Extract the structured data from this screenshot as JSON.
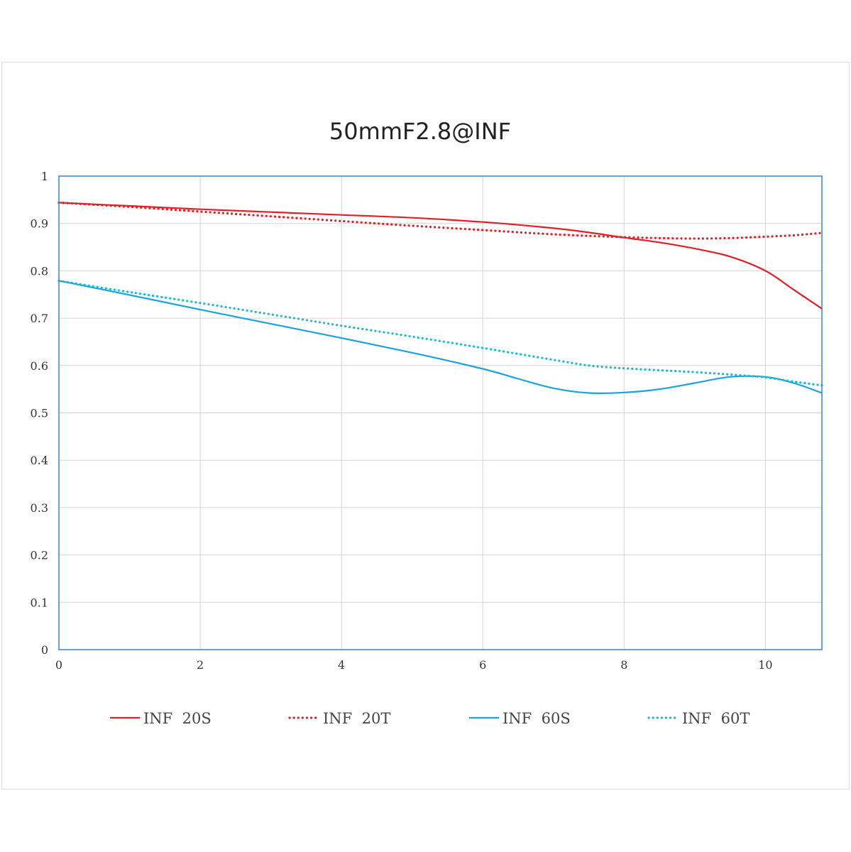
{
  "chart_data": {
    "type": "line",
    "title": "50mmF2.8@INF",
    "xlabel": "",
    "ylabel": "",
    "xlim": [
      0,
      10.8
    ],
    "ylim": [
      0,
      1
    ],
    "x_ticks": [
      "0",
      "2",
      "4",
      "6",
      "8",
      "10"
    ],
    "y_ticks": [
      "0",
      "0.1",
      "0.2",
      "0.3",
      "0.4",
      "0.5",
      "0.6",
      "0.7",
      "0.8",
      "0.9",
      "1"
    ],
    "grid": true,
    "legend_position": "bottom",
    "series": [
      {
        "name": "INF 20S",
        "color": "#e41e26",
        "style": "solid",
        "x": [
          0,
          1,
          2,
          3,
          4,
          5,
          6,
          7,
          7.5,
          8,
          8.5,
          9,
          9.5,
          10,
          10.4,
          10.8
        ],
        "y": [
          0.944,
          0.937,
          0.93,
          0.924,
          0.918,
          0.912,
          0.903,
          0.89,
          0.881,
          0.87,
          0.86,
          0.847,
          0.83,
          0.8,
          0.76,
          0.72
        ]
      },
      {
        "name": "INF 20T",
        "color": "#e41e26",
        "style": "dotted",
        "x": [
          0,
          1,
          2,
          3,
          4,
          5,
          6,
          7,
          8,
          8.5,
          9,
          9.5,
          10,
          10.4,
          10.8
        ],
        "y": [
          0.944,
          0.935,
          0.925,
          0.915,
          0.905,
          0.895,
          0.886,
          0.877,
          0.871,
          0.869,
          0.868,
          0.869,
          0.872,
          0.875,
          0.88
        ]
      },
      {
        "name": "INF 60S",
        "color": "#1aa3dd",
        "style": "solid",
        "x": [
          0,
          1,
          2,
          3,
          4,
          5,
          6,
          6.5,
          7,
          7.5,
          8,
          8.5,
          9,
          9.5,
          10,
          10.4,
          10.8
        ],
        "y": [
          0.779,
          0.749,
          0.718,
          0.688,
          0.658,
          0.627,
          0.593,
          0.572,
          0.552,
          0.542,
          0.543,
          0.55,
          0.563,
          0.576,
          0.576,
          0.563,
          0.542
        ]
      },
      {
        "name": "INF 60T",
        "color": "#17bcc6",
        "style": "dotted",
        "x": [
          0,
          1,
          2,
          3,
          4,
          5,
          6,
          7,
          7.5,
          8,
          8.5,
          9,
          9.5,
          10,
          10.4,
          10.8
        ],
        "y": [
          0.779,
          0.755,
          0.732,
          0.708,
          0.684,
          0.661,
          0.637,
          0.612,
          0.6,
          0.594,
          0.59,
          0.586,
          0.581,
          0.575,
          0.566,
          0.558
        ]
      }
    ]
  }
}
